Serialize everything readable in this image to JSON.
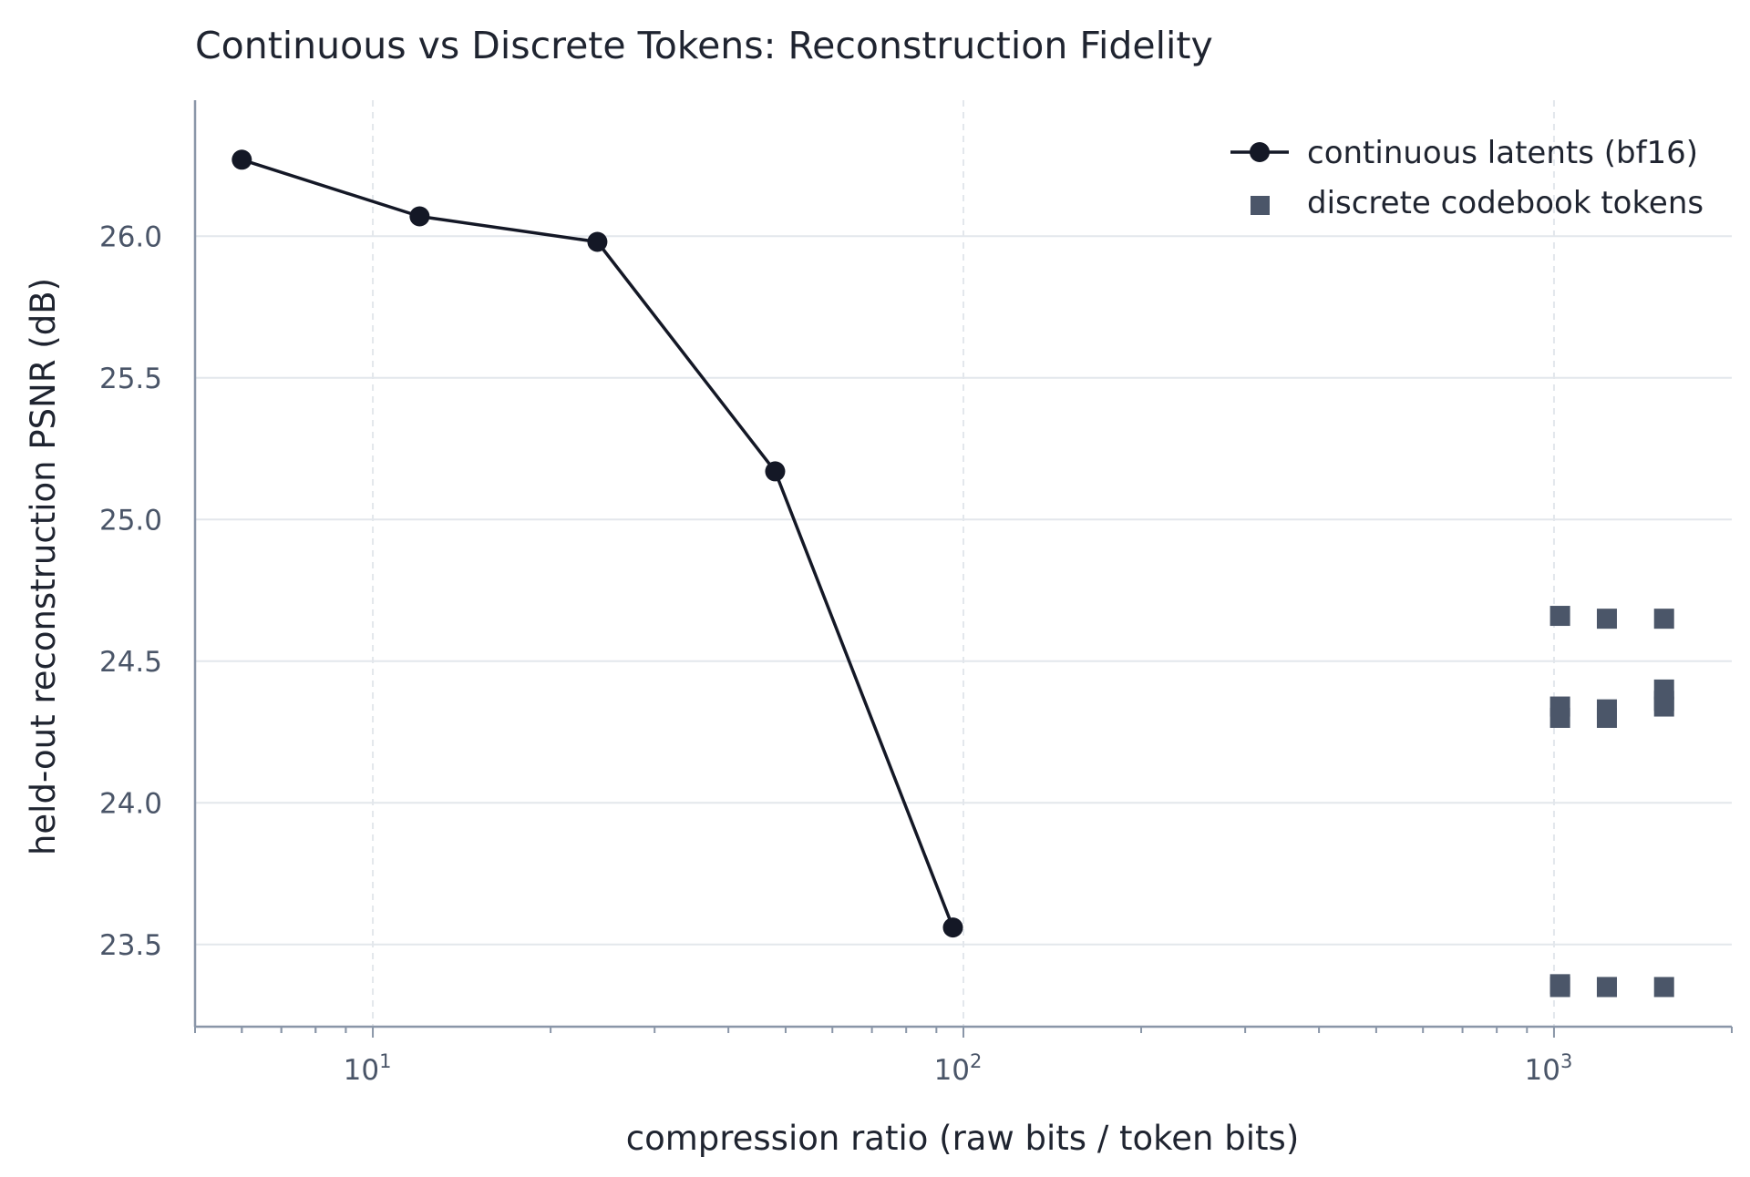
{
  "chart_data": {
    "type": "line",
    "title": "Continuous vs Discrete Tokens: Reconstruction Fidelity",
    "xlabel": "compression ratio (raw bits / token bits)",
    "ylabel": "held-out reconstruction PSNR (dB)",
    "xscale": "log",
    "xlim": [
      5,
      2000
    ],
    "ylim": [
      23.21,
      26.48
    ],
    "x_ticks": [
      {
        "value": 10,
        "base": "10",
        "exp": "1"
      },
      {
        "value": 100,
        "base": "10",
        "exp": "2"
      },
      {
        "value": 1000,
        "base": "10",
        "exp": "3"
      }
    ],
    "y_ticks": [
      23.5,
      24.0,
      24.5,
      25.0,
      25.5,
      26.0
    ],
    "y_tick_labels": [
      "23.5",
      "24.0",
      "24.5",
      "25.0",
      "25.5",
      "26.0"
    ],
    "grid": true,
    "legend_position": "top-right",
    "series": [
      {
        "name": "continuous latents (bf16)",
        "style": "line-marker",
        "color": "#141826",
        "x": [
          6,
          12,
          24,
          48,
          96
        ],
        "y": [
          26.27,
          26.07,
          25.98,
          25.17,
          23.56
        ]
      },
      {
        "name": "discrete codebook tokens",
        "style": "square-marker",
        "color": "#4b5669",
        "x": [
          1024,
          1024,
          1024,
          1024,
          1024,
          1229,
          1229,
          1229,
          1229,
          1229,
          1536,
          1536,
          1536,
          1536,
          1536
        ],
        "y": [
          24.66,
          24.34,
          24.3,
          23.36,
          23.35,
          24.65,
          24.33,
          24.3,
          23.35,
          23.35,
          24.65,
          24.4,
          24.34,
          24.36,
          23.35
        ]
      }
    ]
  }
}
